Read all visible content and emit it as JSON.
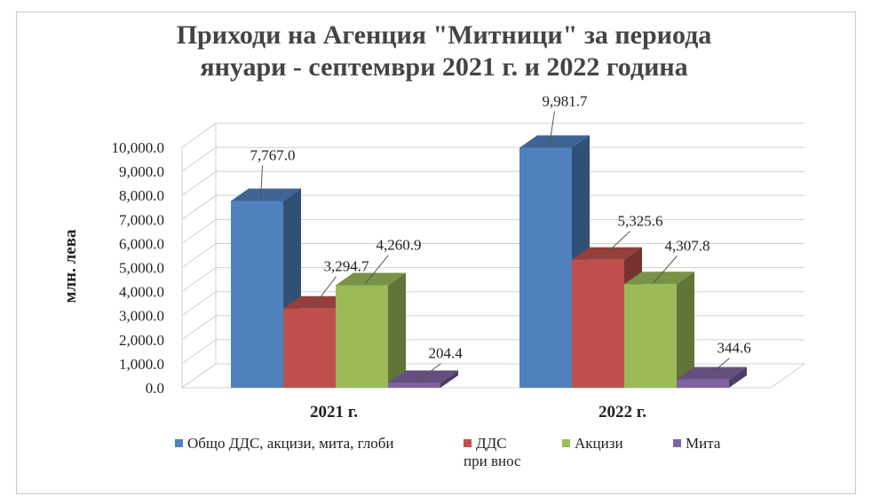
{
  "title_line1": "Приходи на Агенция \"Митници\" за периода",
  "title_line2": "януари - септември 2021 г. и 2022 година",
  "chart_data": {
    "type": "bar",
    "title": "Приходи на Агенция \"Митници\" за периода януари - септември 2021 г. и 2022 година",
    "ylabel": "млн. лева",
    "xlabel": "",
    "ylim": [
      0,
      10000
    ],
    "yticks": [
      "0.0",
      "1,000.0",
      "2,000.0",
      "3,000.0",
      "4,000.0",
      "5,000.0",
      "6,000.0",
      "7,000.0",
      "8,000.0",
      "9,000.0",
      "10,000.0"
    ],
    "grid": true,
    "three_d": true,
    "legend_position": "bottom",
    "categories": [
      "2021 г.",
      "2022 г."
    ],
    "series": [
      {
        "name": "Общо ДДС, акцизи, мита, глоби",
        "color": "#4f81bd",
        "values": [
          7767.0,
          9981.7
        ],
        "labels": [
          "7,767.0",
          "9,981.7"
        ]
      },
      {
        "name": "ДДС при внос",
        "legend_lines": [
          "ДДС",
          "при внос"
        ],
        "color": "#c0504d",
        "values": [
          3294.7,
          5325.6
        ],
        "labels": [
          "3,294.7",
          "5,325.6"
        ]
      },
      {
        "name": "Акцизи",
        "color": "#9bbb59",
        "values": [
          4260.9,
          4307.8
        ],
        "labels": [
          "4,260.9",
          "4,307.8"
        ]
      },
      {
        "name": "Мита",
        "color": "#8064a2",
        "values": [
          204.4,
          344.6
        ],
        "labels": [
          "204.4",
          "344.6"
        ]
      }
    ]
  }
}
